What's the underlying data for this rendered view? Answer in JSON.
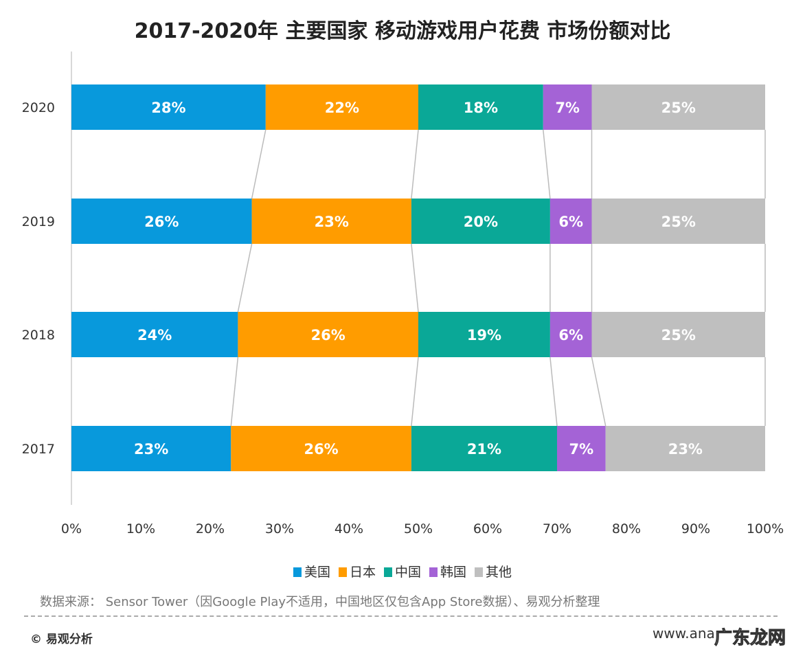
{
  "chart_data": {
    "type": "bar",
    "orientation": "horizontal-stacked-100",
    "title": "2017-2020年 主要国家 移动游戏用户花费 市场份额对比",
    "categories": [
      "2020",
      "2019",
      "2018",
      "2017"
    ],
    "series": [
      {
        "name": "美国",
        "color": "#0899dc",
        "values": [
          28,
          26,
          24,
          23
        ]
      },
      {
        "name": "日本",
        "color": "#ff9c00",
        "values": [
          22,
          23,
          26,
          26
        ]
      },
      {
        "name": "中国",
        "color": "#0aa897",
        "values": [
          18,
          20,
          19,
          21
        ]
      },
      {
        "name": "韩国",
        "color": "#a463d6",
        "values": [
          7,
          6,
          6,
          7
        ]
      },
      {
        "name": "其他",
        "color": "#bfbfbf",
        "values": [
          25,
          25,
          25,
          23
        ]
      }
    ],
    "xlim": [
      0,
      100
    ],
    "xticks": [
      "0%",
      "10%",
      "20%",
      "30%",
      "40%",
      "50%",
      "60%",
      "70%",
      "80%",
      "90%",
      "100%"
    ],
    "legend": "bottom",
    "grid": false
  },
  "footer": {
    "source": "数据来源： Sensor Tower（因Google Play不适用，中国地区仅包含App Store数据）、易观分析整理",
    "copyright": "© 易观分析",
    "site": "www.ana",
    "watermark": "广东龙网"
  }
}
